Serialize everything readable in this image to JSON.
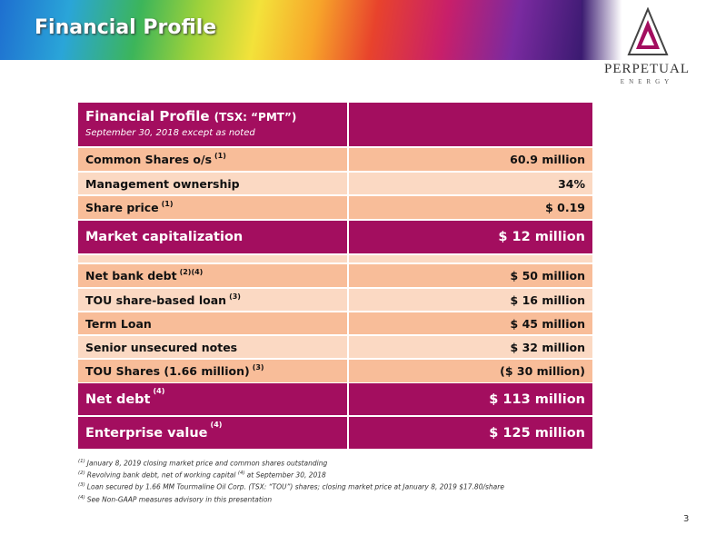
{
  "header": {
    "title": "Financial Profile"
  },
  "logo": {
    "name": "PERPETUAL",
    "sub": "ENERGY"
  },
  "table": {
    "title": "Financial Profile",
    "ticker": "(TSX: “PMT”)",
    "subtitle": "September 30, 2018 except as noted",
    "rows": [
      {
        "label": "Common Shares o/s",
        "note": "(1)",
        "value": "60.9 million"
      },
      {
        "label": "Management ownership",
        "value": "34%"
      },
      {
        "label": "Share price",
        "note": "(1)",
        "value": "$ 0.19"
      },
      {
        "label": "Market capitalization",
        "value": "$ 12 million"
      },
      {
        "label": "Net bank debt",
        "note": "(2)(4)",
        "value": "$ 50 million"
      },
      {
        "label": "TOU share-based loan",
        "note": "(3)",
        "value": "$ 16 million"
      },
      {
        "label": "Term Loan",
        "value": "$ 45 million"
      },
      {
        "label": "Senior unsecured notes",
        "value": "$ 32 million"
      },
      {
        "label": "TOU Shares  (1.66 million)",
        "note": "(3)",
        "value": "($ 30 million)"
      },
      {
        "label": "Net debt",
        "note": "(4)",
        "value": "$ 113 million"
      },
      {
        "label": "Enterprise value",
        "note": "(4)",
        "value": "$ 125 million"
      }
    ]
  },
  "footnotes": [
    {
      "marker": "(1)",
      "text": "January 8, 2019 closing market price and common shares outstanding"
    },
    {
      "marker": "(2)",
      "text": "Revolving bank debt, net of working capital",
      "inner_marker": "(4)",
      "text_after": "at September 30, 2018"
    },
    {
      "marker": "(3)",
      "text": "Loan secured by 1.66 MM Tourmaline Oil Corp. (TSX: “TOU”) shares; closing market price at January 8, 2019 $17.80/share"
    },
    {
      "marker": "(4)",
      "text": "See Non-GAAP measures advisory in this presentation"
    }
  ],
  "page_number": "3"
}
